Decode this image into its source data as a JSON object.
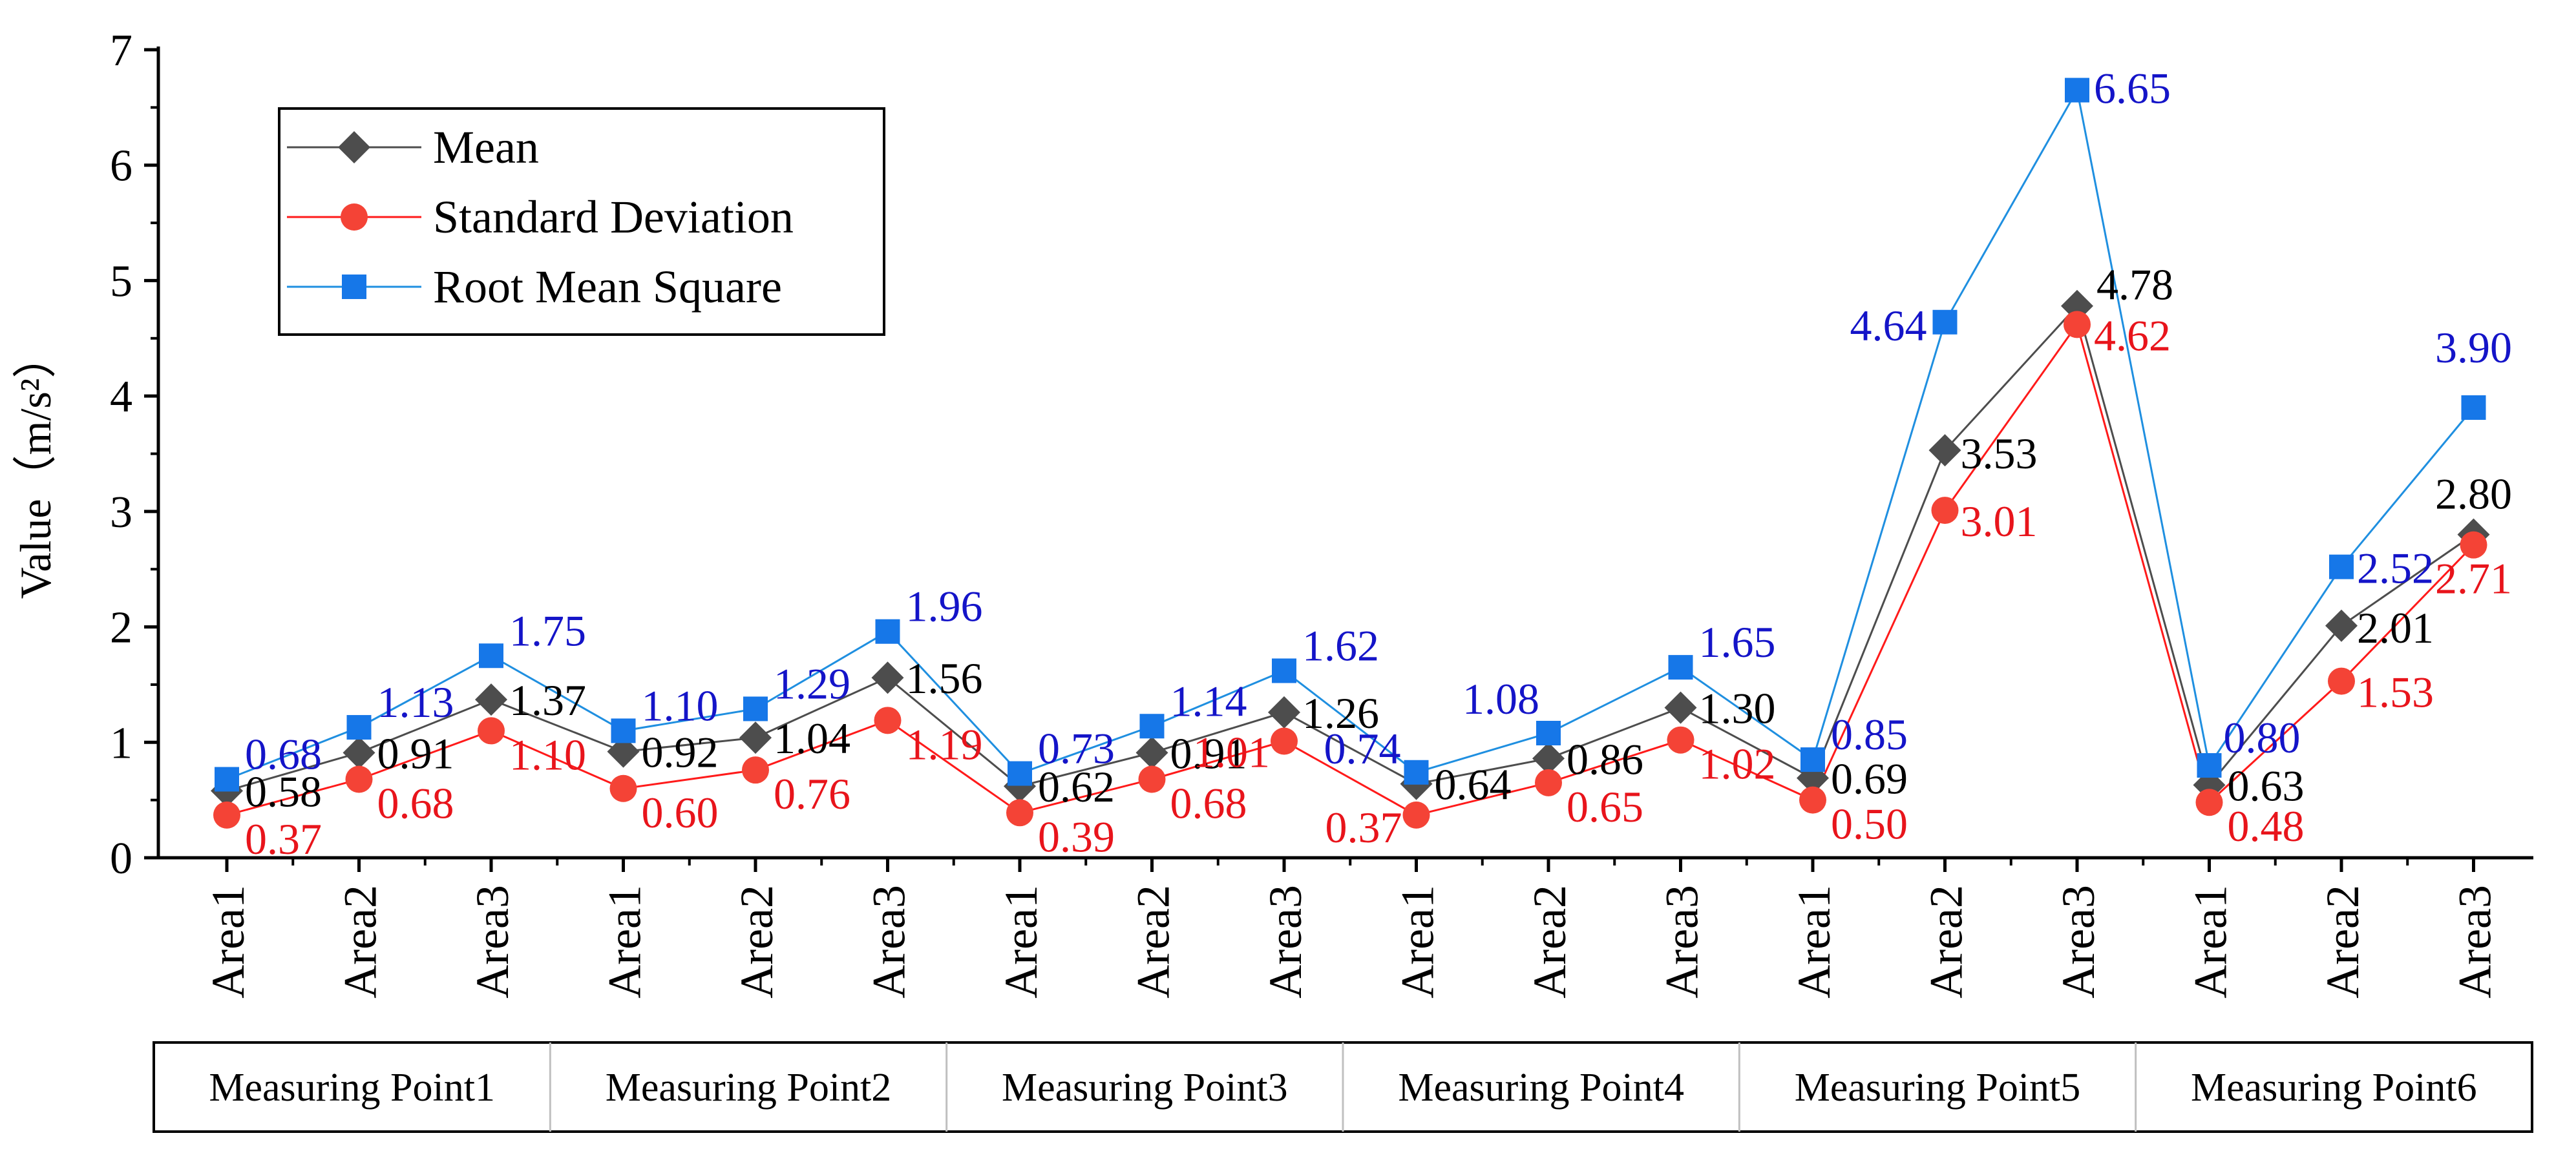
{
  "chart_data": {
    "type": "line",
    "title": "",
    "ylabel": "Value（m/s²）",
    "xlabel": "",
    "ylim": [
      0,
      7
    ],
    "yticks": [
      "0",
      "1",
      "2",
      "3",
      "4",
      "5",
      "6",
      "7"
    ],
    "categories": [
      "Area1",
      "Area2",
      "Area3",
      "Area1",
      "Area2",
      "Area3",
      "Area1",
      "Area2",
      "Area3",
      "Area1",
      "Area2",
      "Area3",
      "Area1",
      "Area2",
      "Area3",
      "Area1",
      "Area2",
      "Area3"
    ],
    "groups": [
      "Measuring Point1",
      "Measuring Point2",
      "Measuring Point3",
      "Measuring Point4",
      "Measuring Point5",
      "Measuring Point6"
    ],
    "legend_position": "top-left",
    "series": [
      {
        "name": "Mean",
        "marker": "diamond",
        "color": "#4d4d4d",
        "line_color": "#4d4d4d",
        "label_color": "#000000",
        "values": [
          0.58,
          0.91,
          1.37,
          0.92,
          1.04,
          1.56,
          0.62,
          0.91,
          1.26,
          0.64,
          0.86,
          1.3,
          0.69,
          3.53,
          4.78,
          0.63,
          2.01,
          2.8
        ],
        "labels": [
          "0.58",
          "0.91",
          "1.37",
          "0.92",
          "1.04",
          "1.56",
          "0.62",
          "0.91",
          "1.26",
          "0.64",
          "0.86",
          "1.30",
          "0.69",
          "3.53",
          "4.78",
          "0.63",
          "2.01",
          "2.80"
        ]
      },
      {
        "name": "Standard Deviation",
        "marker": "circle",
        "color": "#f44336",
        "line_color": "#ff1a1a",
        "label_color": "#e8141b",
        "values": [
          0.37,
          0.68,
          1.1,
          0.6,
          0.76,
          1.19,
          0.39,
          0.68,
          1.01,
          0.37,
          0.65,
          1.02,
          0.5,
          3.01,
          4.62,
          0.48,
          1.53,
          2.71
        ],
        "labels": [
          "0.37",
          "0.68",
          "1.10",
          "0.60",
          "0.76",
          "1.19",
          "0.39",
          "0.68",
          "1.01",
          "0.37",
          "0.65",
          "1.02",
          "0.50",
          "3.01",
          "4.62",
          "0.48",
          "1.53",
          "2.71"
        ]
      },
      {
        "name": "Root Mean Square",
        "marker": "square",
        "color": "#1677e8",
        "line_color": "#1f8fe0",
        "label_color": "#1414c8",
        "values": [
          0.68,
          1.13,
          1.75,
          1.1,
          1.29,
          1.96,
          0.73,
          1.14,
          1.62,
          0.74,
          1.08,
          1.65,
          0.85,
          4.64,
          6.65,
          0.8,
          2.52,
          3.9
        ],
        "labels": [
          "0.68",
          "1.13",
          "1.75",
          "1.10",
          "1.29",
          "1.96",
          "0.73",
          "1.14",
          "1.62",
          "0.74",
          "1.08",
          "1.65",
          "0.85",
          "4.64",
          "6.65",
          "0.80",
          "2.52",
          "3.90"
        ]
      }
    ]
  }
}
